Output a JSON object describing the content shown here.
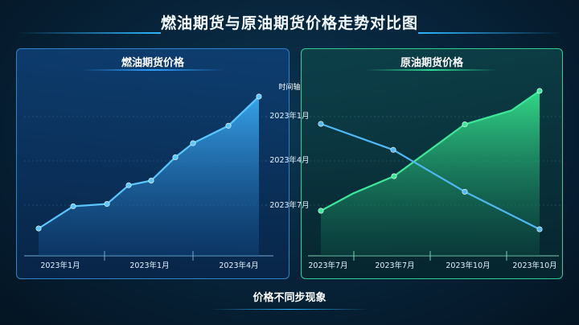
{
  "title": "燃油期货与原油期货价格走势对比图",
  "bottom_label": "价格不同步现象",
  "colors": {
    "fuel_line": "#5ac8ff",
    "crude_green": "#3ee89a",
    "crude_blue": "#4fb8f5"
  },
  "chart_data": [
    {
      "type": "area",
      "title": "燃油期货价格",
      "x_tick_labels": [
        "2023年1月",
        "2023年1月",
        "2023年4月"
      ],
      "series": [
        {
          "values": [
            10,
            29,
            31,
            47,
            51,
            71,
            83,
            98,
            123
          ]
        }
      ],
      "ylim": [
        0,
        130
      ],
      "grid": true,
      "legend": "none"
    },
    {
      "type": "line",
      "title": "原油期货价格",
      "y_axis_title": "时间轴",
      "y_tick_labels": [
        "2023年1月",
        "2023年4月",
        "2023年7月"
      ],
      "x_tick_labels": [
        "2023年7月",
        "2023年7月",
        "2023年10月",
        "2023年10月"
      ],
      "series": [
        {
          "type": "area",
          "values": [
            10,
            25,
            40,
            85,
            97,
            114
          ]
        },
        {
          "type": "line",
          "values": [
            94,
            76,
            47,
            21
          ]
        }
      ],
      "ylim": [
        0,
        125
      ],
      "grid": true,
      "legend": "none"
    }
  ]
}
